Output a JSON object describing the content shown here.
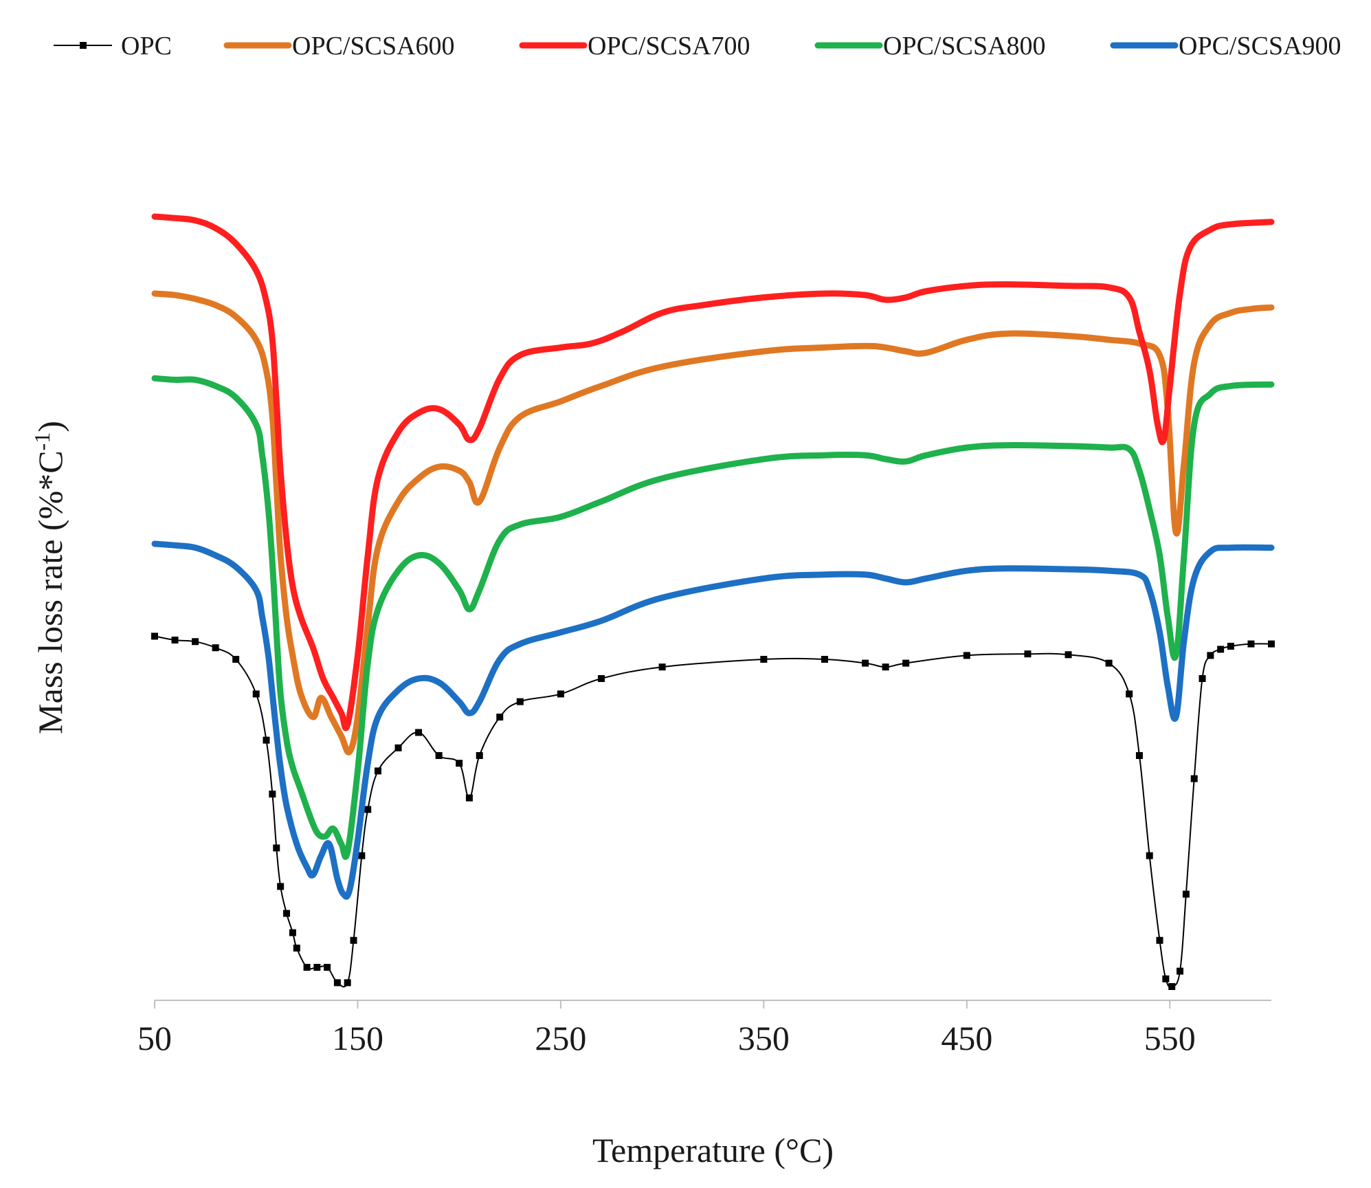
{
  "chart_data": {
    "type": "line",
    "title": "",
    "xlabel": "Temperature (°C)",
    "ylabel": "Mass loss rate (%*C",
    "ylabel_superscript": "-1",
    "ylabel_suffix": ")",
    "xlim": [
      50,
      600
    ],
    "ylim": [
      0,
      100
    ],
    "xticks": [
      50,
      150,
      250,
      350,
      450,
      550
    ],
    "grid": false,
    "y_ticks_shown": false,
    "legend_position": "top",
    "series": [
      {
        "name": "OPC",
        "color": "#000000",
        "style": "marker",
        "x": [
          50,
          60,
          70,
          80,
          90,
          100,
          105,
          108,
          110,
          112,
          115,
          118,
          120,
          125,
          130,
          135,
          140,
          145,
          148,
          152,
          155,
          160,
          170,
          180,
          190,
          200,
          205,
          210,
          220,
          230,
          250,
          270,
          300,
          350,
          380,
          400,
          410,
          420,
          450,
          480,
          500,
          520,
          530,
          535,
          540,
          545,
          548,
          551,
          555,
          558,
          562,
          566,
          570,
          575,
          580,
          590,
          600
        ],
        "y": [
          45.5,
          45,
          44.8,
          44,
          42.5,
          38,
          32,
          25,
          18,
          13,
          9.5,
          7,
          5,
          2.5,
          2.5,
          2.5,
          0.5,
          0.5,
          6,
          17,
          23,
          28,
          31,
          33,
          30,
          29,
          24.5,
          30,
          35,
          37,
          38,
          40,
          41.5,
          42.5,
          42.5,
          42,
          41.5,
          42,
          43,
          43.2,
          43.1,
          42,
          38,
          30,
          17,
          6,
          1,
          0,
          2,
          12,
          27,
          40,
          43,
          43.8,
          44.2,
          44.5,
          44.5
        ]
      },
      {
        "name": "OPC/SCSA600",
        "color": "#e07823",
        "style": "line",
        "x": [
          50,
          60,
          70,
          80,
          90,
          100,
          105,
          108,
          110,
          112,
          115,
          118,
          122,
          128,
          132,
          137,
          142,
          146,
          150,
          155,
          160,
          170,
          180,
          190,
          200,
          205,
          210,
          220,
          230,
          250,
          270,
          300,
          350,
          380,
          400,
          410,
          420,
          430,
          450,
          470,
          500,
          520,
          535,
          545,
          549,
          553,
          557,
          562,
          570,
          580,
          590,
          600
        ],
        "y": [
          90,
          89.8,
          89.3,
          88.5,
          87,
          84,
          80,
          74,
          65,
          56,
          48,
          43,
          38,
          35,
          37.5,
          35,
          32.5,
          30.5,
          35,
          47,
          57,
          63,
          66,
          67.5,
          67,
          65.5,
          63,
          70,
          74,
          76,
          78,
          80.5,
          82.5,
          83,
          83.2,
          83,
          82.5,
          82.3,
          84,
          84.8,
          84.5,
          84,
          83.5,
          82,
          75,
          59,
          68,
          81,
          86,
          87.5,
          88,
          88.2
        ]
      },
      {
        "name": "OPC/SCSA700",
        "color": "#ff1f1f",
        "style": "line",
        "x": [
          50,
          60,
          70,
          80,
          90,
          100,
          105,
          108,
          110,
          112,
          115,
          118,
          122,
          128,
          133,
          138,
          142,
          145,
          150,
          155,
          160,
          170,
          180,
          190,
          200,
          205,
          210,
          220,
          230,
          250,
          265,
          280,
          300,
          320,
          350,
          380,
          400,
          410,
          420,
          430,
          450,
          470,
          500,
          520,
          530,
          535,
          540,
          544,
          547,
          550,
          555,
          560,
          570,
          580,
          600
        ],
        "y": [
          100,
          99.8,
          99.5,
          98.5,
          96.5,
          93,
          89,
          84,
          76,
          67,
          58,
          52,
          48,
          44,
          40,
          37.5,
          35.5,
          34,
          43,
          56,
          66,
          72,
          74.5,
          75,
          73,
          71,
          72.5,
          79,
          82,
          83,
          83.5,
          85,
          87.5,
          88.5,
          89.5,
          90,
          89.8,
          89.2,
          89.5,
          90.3,
          91,
          91.2,
          91,
          90.8,
          89.5,
          85,
          80,
          73,
          71,
          78,
          90,
          96,
          98.3,
          99,
          99.3
        ]
      },
      {
        "name": "OPC/SCSA800",
        "color": "#1fb14c",
        "style": "line",
        "x": [
          50,
          60,
          70,
          80,
          90,
          100,
          103,
          106,
          108,
          110,
          112,
          115,
          118,
          122,
          126,
          130,
          134,
          138,
          142,
          145,
          150,
          155,
          160,
          170,
          180,
          190,
          200,
          205,
          210,
          220,
          230,
          250,
          270,
          300,
          350,
          380,
          400,
          410,
          420,
          430,
          450,
          470,
          500,
          520,
          530,
          535,
          540,
          545,
          549,
          553,
          557,
          562,
          570,
          580,
          600
        ],
        "y": [
          79,
          78.8,
          78.8,
          78,
          76.5,
          73,
          69,
          62,
          55,
          46,
          38,
          32,
          28.5,
          25.5,
          22.5,
          20,
          19.5,
          20.5,
          18.5,
          17.5,
          28,
          42,
          49,
          54,
          56,
          55,
          51.5,
          49,
          51.5,
          58,
          60,
          61,
          63,
          66,
          68.5,
          69,
          69,
          68.5,
          68.2,
          69,
          70,
          70.3,
          70.2,
          70,
          69.8,
          67,
          62,
          56,
          48,
          43,
          56,
          73,
          77,
          78,
          78.2
        ]
      },
      {
        "name": "OPC/SCSA900",
        "color": "#1d70c4",
        "style": "line",
        "x": [
          50,
          60,
          70,
          80,
          90,
          100,
          103,
          106,
          108,
          110,
          112,
          115,
          120,
          125,
          128,
          132,
          136,
          140,
          143,
          146,
          150,
          155,
          160,
          170,
          180,
          190,
          200,
          205,
          210,
          220,
          230,
          250,
          270,
          300,
          350,
          380,
          400,
          410,
          420,
          430,
          450,
          470,
          500,
          520,
          535,
          540,
          545,
          549,
          553,
          557,
          562,
          570,
          580,
          600
        ],
        "y": [
          57.5,
          57.3,
          57,
          56,
          54.5,
          51.5,
          48,
          43,
          38,
          33,
          28.5,
          23.5,
          18.5,
          15.5,
          14.5,
          17,
          18.5,
          14,
          12,
          12.5,
          19,
          29,
          35,
          38.5,
          40,
          39.5,
          37,
          35.5,
          37,
          42.5,
          44.5,
          46,
          47.5,
          50.5,
          53,
          53.5,
          53.5,
          53,
          52.5,
          53,
          54,
          54.3,
          54.2,
          54,
          53.5,
          51.5,
          46,
          39,
          35,
          45,
          53,
          56.5,
          57,
          57
        ]
      }
    ]
  }
}
